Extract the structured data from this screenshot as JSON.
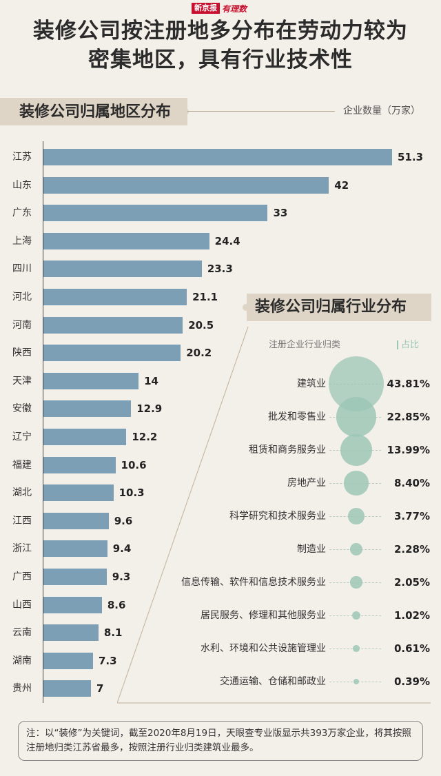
{
  "header": {
    "logo_red": "新京报",
    "logo_script": "有理数",
    "title_line1": "装修公司按注册地多分布在劳动力较为",
    "title_line2": "密集地区，具有行业技术性"
  },
  "colors": {
    "bar": "#7d9fb6",
    "bubble": "#9cc7b6",
    "banner": "#dfd5c6",
    "background": "#f3efe9"
  },
  "chart_data": [
    {
      "type": "bar",
      "orientation": "horizontal",
      "title": "装修公司归属地区分布",
      "unit_label": "企业数量（万家）",
      "categories": [
        "江苏",
        "山东",
        "广东",
        "上海",
        "四川",
        "河北",
        "河南",
        "陕西",
        "天津",
        "安徽",
        "辽宁",
        "福建",
        "湖北",
        "江西",
        "浙江",
        "广西",
        "山西",
        "云南",
        "湖南",
        "贵州"
      ],
      "values": [
        51.3,
        42,
        33,
        24.4,
        23.3,
        21.1,
        20.5,
        20.2,
        14,
        12.9,
        12.2,
        10.6,
        10.3,
        9.6,
        9.4,
        9.3,
        8.6,
        8.1,
        7.3,
        7
      ],
      "value_labels": [
        "51.3",
        "42",
        "33",
        "24.4",
        "23.3",
        "21.1",
        "20.5",
        "20.2",
        "14",
        "12.9",
        "12.2",
        "10.6",
        "10.3",
        "9.6",
        "9.4",
        "9.3",
        "8.6",
        "8.1",
        "7.3",
        "7"
      ]
    },
    {
      "type": "bubble",
      "title": "装修公司归属行业分布",
      "category_header": "注册企业行业归类",
      "value_header": "占比",
      "categories": [
        "建筑业",
        "批发和零售业",
        "租赁和商务服务业",
        "房地产业",
        "科学研究和技术服务业",
        "制造业",
        "信息传输、软件和信息技术服务业",
        "居民服务、修理和其他服务业",
        "水利、环境和公共设施管理业",
        "交通运输、仓储和邮政业"
      ],
      "values": [
        43.81,
        22.85,
        13.99,
        8.4,
        3.77,
        2.28,
        2.05,
        1.02,
        0.61,
        0.39
      ],
      "value_labels": [
        "43.81%",
        "22.85%",
        "13.99%",
        "8.40%",
        "3.77%",
        "2.28%",
        "2.05%",
        "1.02%",
        "0.61%",
        "0.39%"
      ]
    }
  ],
  "note": "注：以“装修”为关键词，截至2020年8月19日，天眼查专业版显示共393万家企业，将其按照注册地归类江苏省最多，按照注册行业归类建筑业最多。"
}
